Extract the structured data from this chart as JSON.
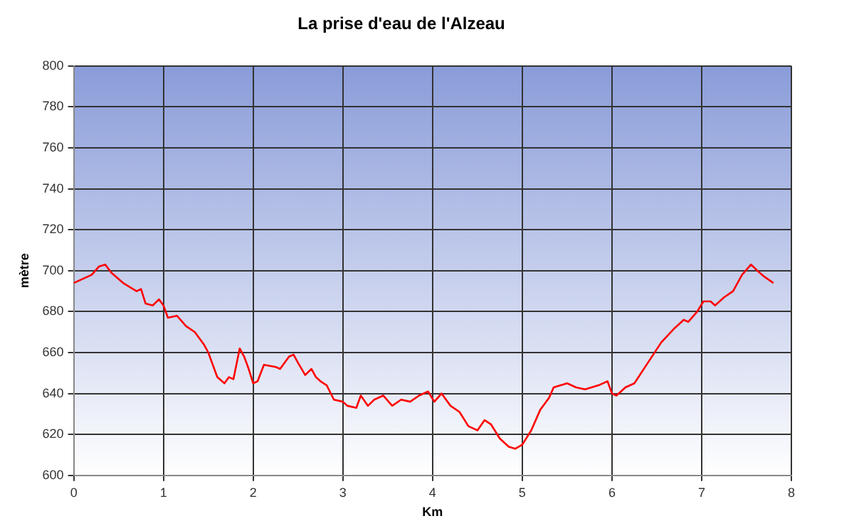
{
  "chart_data": {
    "type": "line",
    "title": "La prise d'eau de l'Alzeau",
    "xlabel": "Km",
    "ylabel": "mètre",
    "x": [
      0,
      0.1,
      0.2,
      0.28,
      0.35,
      0.42,
      0.55,
      0.7,
      0.75,
      0.8,
      0.88,
      0.95,
      1.0,
      1.05,
      1.15,
      1.25,
      1.35,
      1.45,
      1.5,
      1.6,
      1.68,
      1.73,
      1.78,
      1.85,
      1.9,
      1.95,
      2.0,
      2.05,
      2.12,
      2.25,
      2.3,
      2.4,
      2.45,
      2.5,
      2.58,
      2.65,
      2.7,
      2.75,
      2.82,
      2.9,
      3.0,
      3.05,
      3.15,
      3.2,
      3.28,
      3.35,
      3.45,
      3.55,
      3.65,
      3.75,
      3.85,
      3.95,
      4.02,
      4.1,
      4.2,
      4.3,
      4.4,
      4.5,
      4.58,
      4.65,
      4.75,
      4.85,
      4.92,
      5.0,
      5.1,
      5.2,
      5.3,
      5.35,
      5.5,
      5.6,
      5.7,
      5.85,
      5.95,
      6.0,
      6.05,
      6.15,
      6.25,
      6.4,
      6.55,
      6.7,
      6.8,
      6.85,
      6.95,
      7.02,
      7.1,
      7.15,
      7.25,
      7.35,
      7.45,
      7.55,
      7.62,
      7.7,
      7.8
    ],
    "series": [
      {
        "color": "#ff0000",
        "values": [
          694,
          696,
          698,
          702,
          703,
          699,
          694,
          690,
          691,
          684,
          683,
          686,
          683,
          677,
          678,
          673,
          670,
          664,
          660,
          648,
          645,
          648,
          647,
          662,
          658,
          652,
          645,
          646,
          654,
          653,
          652,
          658,
          659,
          655,
          649,
          652,
          648,
          646,
          644,
          637,
          636,
          634,
          633,
          639,
          634,
          637,
          639,
          634,
          637,
          636,
          639,
          641,
          636,
          640,
          634,
          631,
          624,
          622,
          627,
          625,
          618,
          614,
          613,
          615,
          622,
          632,
          638,
          643,
          645,
          643,
          642,
          644,
          646,
          640,
          639,
          643,
          645,
          655,
          665,
          672,
          676,
          675,
          680,
          685,
          685,
          683,
          687,
          690,
          698,
          703,
          700,
          697,
          694
        ]
      }
    ],
    "xlim": [
      0,
      8
    ],
    "xticks": [
      0,
      1,
      2,
      3,
      4,
      5,
      6,
      7,
      8
    ],
    "ylim": [
      600,
      800
    ],
    "yticks": [
      600,
      620,
      640,
      660,
      680,
      700,
      720,
      740,
      760,
      780,
      800
    ],
    "grid": true,
    "legend": false,
    "marker": "none",
    "line_style": "solid"
  }
}
